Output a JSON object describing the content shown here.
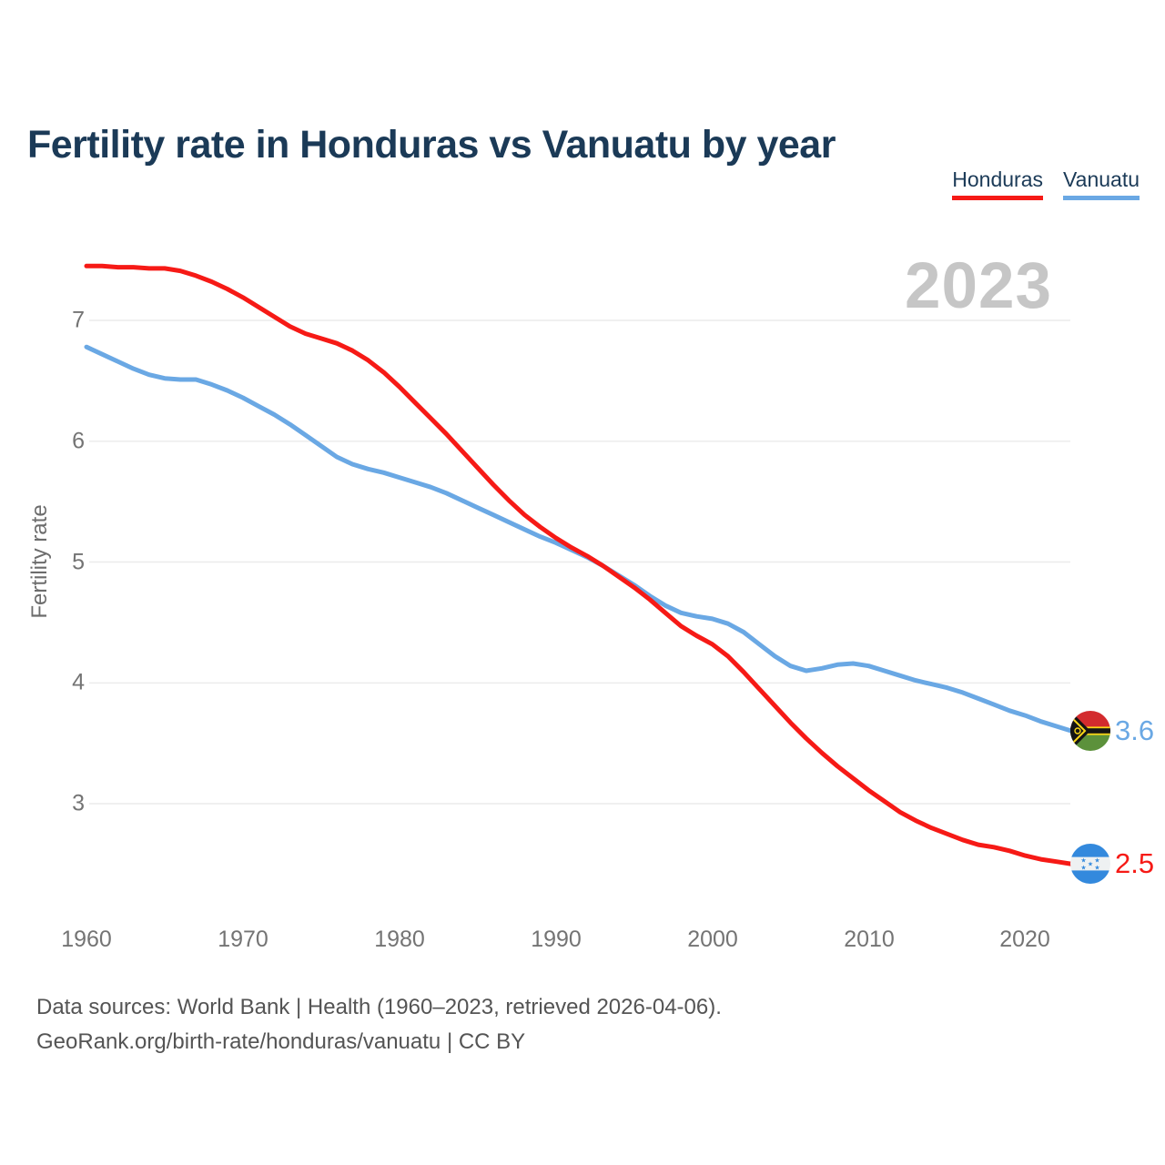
{
  "title": "Fertility rate in Honduras vs Vanuatu by year",
  "legend": {
    "items": [
      {
        "label": "Honduras",
        "color": "#f61a16"
      },
      {
        "label": "Vanuatu",
        "color": "#6aa8e4"
      }
    ]
  },
  "watermark": "2023",
  "y_axis": {
    "label": "Fertility rate",
    "ticks": [
      "7",
      "6",
      "5",
      "4",
      "3"
    ]
  },
  "x_axis": {
    "ticks": [
      "1960",
      "1970",
      "1980",
      "1990",
      "2000",
      "2010",
      "2020"
    ]
  },
  "end_labels": {
    "vanuatu": "3.6",
    "honduras": "2.5"
  },
  "footer": {
    "line1": "Data sources: World Bank | Health (1960–2023, retrieved 2026-04-06).",
    "line2": "GeoRank.org/birth-rate/honduras/vanuatu | CC BY"
  },
  "chart_data": {
    "type": "line",
    "title": "Fertility rate in Honduras vs Vanuatu by year",
    "xlabel": "",
    "ylabel": "Fertility rate",
    "x_range": [
      1960,
      2023
    ],
    "x_step": 1,
    "x_ticks": [
      1960,
      1970,
      1980,
      1990,
      2000,
      2010,
      2020
    ],
    "y_ticks": [
      3,
      4,
      5,
      6,
      7
    ],
    "ylim": [
      2.2,
      7.7
    ],
    "grid": "horizontal",
    "legend_position": "top-right",
    "current_year_label": "2023",
    "series": [
      {
        "name": "Honduras",
        "color": "#f61a16",
        "end_value": 2.5,
        "values": [
          7.45,
          7.45,
          7.44,
          7.44,
          7.43,
          7.43,
          7.41,
          7.37,
          7.32,
          7.26,
          7.19,
          7.11,
          7.03,
          6.95,
          6.89,
          6.85,
          6.81,
          6.75,
          6.67,
          6.57,
          6.45,
          6.32,
          6.19,
          6.06,
          5.92,
          5.78,
          5.64,
          5.51,
          5.39,
          5.29,
          5.2,
          5.12,
          5.05,
          4.97,
          4.88,
          4.79,
          4.69,
          4.58,
          4.47,
          4.39,
          4.32,
          4.22,
          4.09,
          3.95,
          3.81,
          3.67,
          3.54,
          3.42,
          3.31,
          3.21,
          3.11,
          3.02,
          2.93,
          2.86,
          2.8,
          2.75,
          2.7,
          2.66,
          2.64,
          2.61,
          2.57,
          2.54,
          2.52,
          2.5
        ]
      },
      {
        "name": "Vanuatu",
        "color": "#6aa8e4",
        "end_value": 3.6,
        "values": [
          6.78,
          6.72,
          6.66,
          6.6,
          6.55,
          6.52,
          6.51,
          6.51,
          6.47,
          6.42,
          6.36,
          6.29,
          6.22,
          6.14,
          6.05,
          5.96,
          5.87,
          5.81,
          5.77,
          5.74,
          5.7,
          5.66,
          5.62,
          5.57,
          5.51,
          5.45,
          5.39,
          5.33,
          5.27,
          5.21,
          5.16,
          5.1,
          5.04,
          4.97,
          4.89,
          4.81,
          4.72,
          4.64,
          4.58,
          4.55,
          4.53,
          4.49,
          4.42,
          4.32,
          4.22,
          4.14,
          4.1,
          4.12,
          4.15,
          4.16,
          4.14,
          4.1,
          4.06,
          4.02,
          3.99,
          3.96,
          3.92,
          3.87,
          3.82,
          3.77,
          3.73,
          3.68,
          3.64,
          3.6
        ]
      }
    ]
  }
}
